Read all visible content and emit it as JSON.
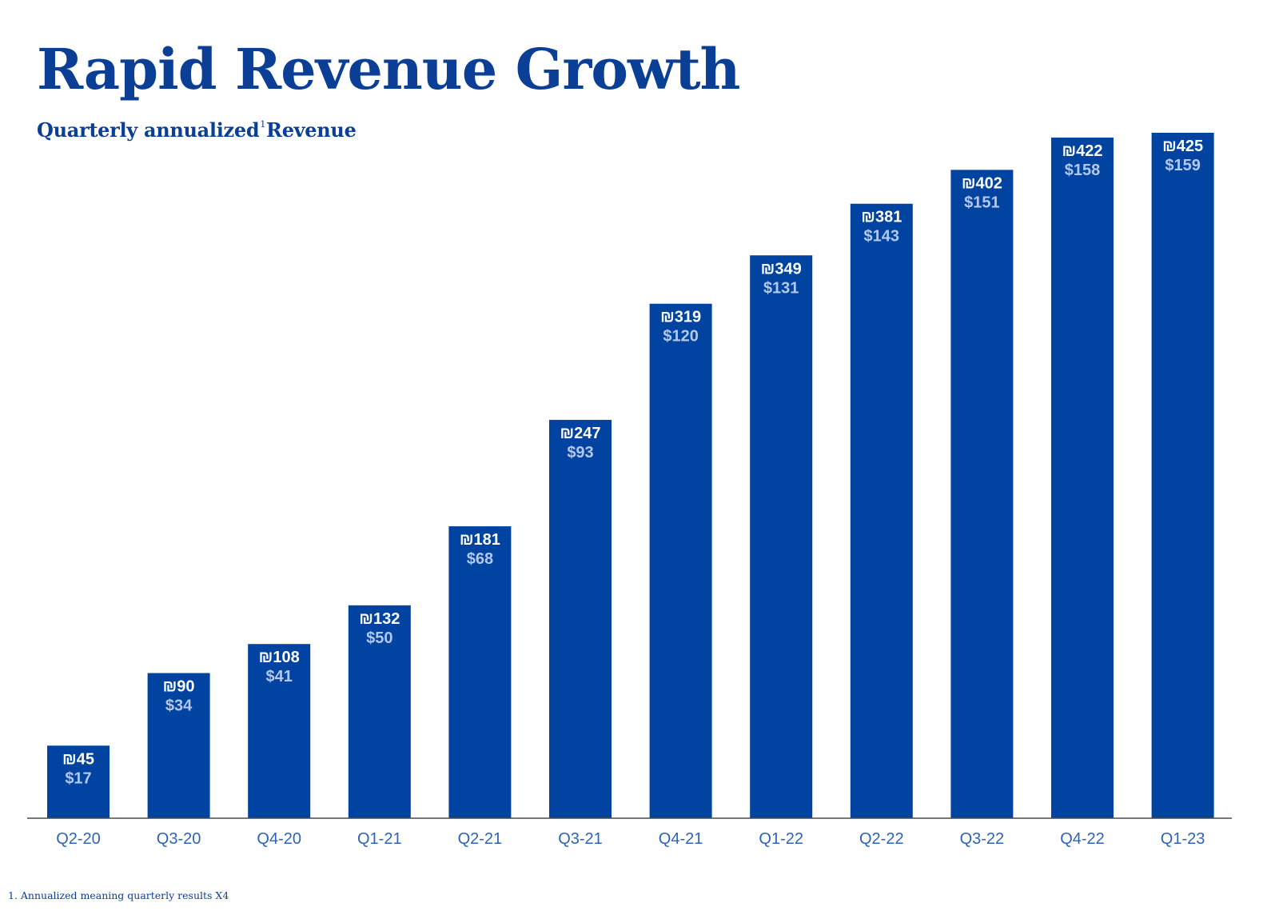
{
  "header": {
    "title": "Rapid Revenue Growth",
    "subtitle_before": "Quarterly annualized",
    "subtitle_sup": "1",
    "subtitle_after": "Revenue"
  },
  "footnote": "1. Annualized meaning quarterly results X4",
  "colors": {
    "bar": "#0143a0",
    "title": "#0b3f96",
    "axis_label": "#2f63b8",
    "label_primary": "#ffffff",
    "label_secondary": "#b3c8ec",
    "baseline": "#4a4a4a"
  },
  "chart_data": {
    "type": "bar",
    "categories": [
      "Q2-20",
      "Q3-20",
      "Q4-20",
      "Q1-21",
      "Q2-21",
      "Q3-21",
      "Q4-21",
      "Q1-22",
      "Q2-22",
      "Q3-22",
      "Q4-22",
      "Q1-23"
    ],
    "series": [
      {
        "values": [
          45,
          90,
          108,
          132,
          181,
          247,
          319,
          349,
          381,
          402,
          422,
          425
        ],
        "labels": [
          "₪45",
          "₪90",
          "₪108",
          "₪132",
          "₪181",
          "₪247",
          "₪319",
          "₪349",
          "₪381",
          "₪402",
          "₪422",
          "₪425"
        ]
      },
      {
        "values": [
          17,
          34,
          41,
          50,
          68,
          93,
          120,
          131,
          143,
          151,
          158,
          159
        ],
        "labels": [
          "$17",
          "$34",
          "$41",
          "$50",
          "$68",
          "$93",
          "$120",
          "$131",
          "$143",
          "$151",
          "$158",
          "$159"
        ]
      }
    ],
    "ylim": [
      0,
      425
    ],
    "grid": false,
    "legend": "none"
  }
}
